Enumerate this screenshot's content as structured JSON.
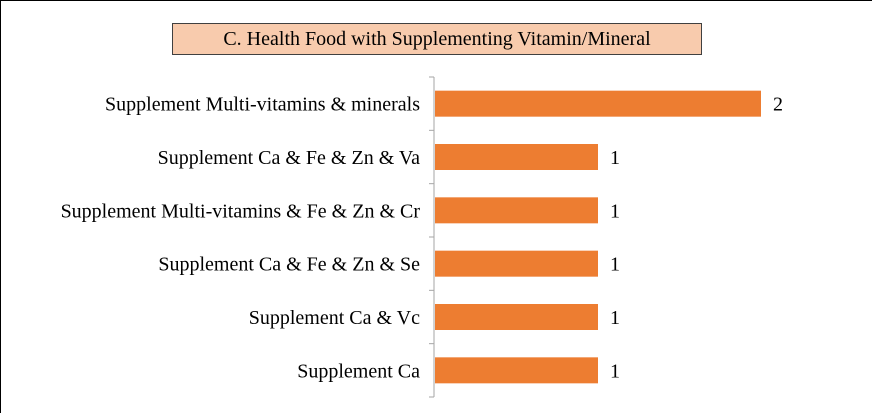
{
  "chart_data": {
    "type": "bar",
    "orientation": "horizontal",
    "title": "C. Health Food with Supplementing Vitamin/Mineral",
    "categories": [
      "Supplement Multi-vitamins & minerals",
      "Supplement Ca & Fe & Zn & Va",
      "Supplement Multi-vitamins & Fe & Zn & Cr",
      "Supplement Ca & Fe & Zn & Se",
      "Supplement Ca & Vc",
      "Supplement Ca"
    ],
    "values": [
      2,
      1,
      1,
      1,
      1,
      1
    ],
    "data_labels": [
      "2",
      "1",
      "1",
      "1",
      "1",
      "1"
    ],
    "xlim": [
      0,
      2.3
    ],
    "grid": false,
    "legend": "none",
    "colors": {
      "bar": "#ed7d31",
      "title_fill": "#f8cbad",
      "axis": "#a6a6a6"
    }
  }
}
